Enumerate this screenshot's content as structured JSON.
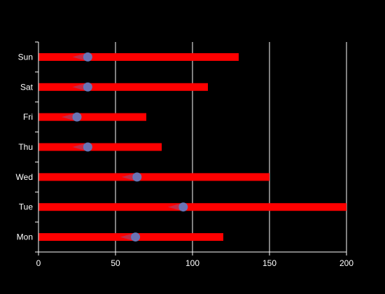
{
  "chart_data": {
    "type": "bar",
    "orientation": "horizontal",
    "categories": [
      "Mon",
      "Tue",
      "Wed",
      "Thu",
      "Fri",
      "Sat",
      "Sun"
    ],
    "series": [
      {
        "values": [
          120,
          200,
          150,
          80,
          70,
          110,
          130
        ],
        "color": "#ff0000"
      },
      {
        "values": [
          63,
          94,
          64,
          32,
          25,
          32,
          32
        ],
        "color": "#5b7fc8",
        "style": "marker"
      }
    ],
    "xlim": [
      0,
      200
    ],
    "xticks": [
      "0",
      "50",
      "100",
      "150",
      "200"
    ],
    "grid": "vertical"
  },
  "colors": {
    "background": "#000000",
    "bar": "#ff0000",
    "marker": "#5b7fc8",
    "grid": "#ffffff",
    "text": "#ffffff"
  }
}
